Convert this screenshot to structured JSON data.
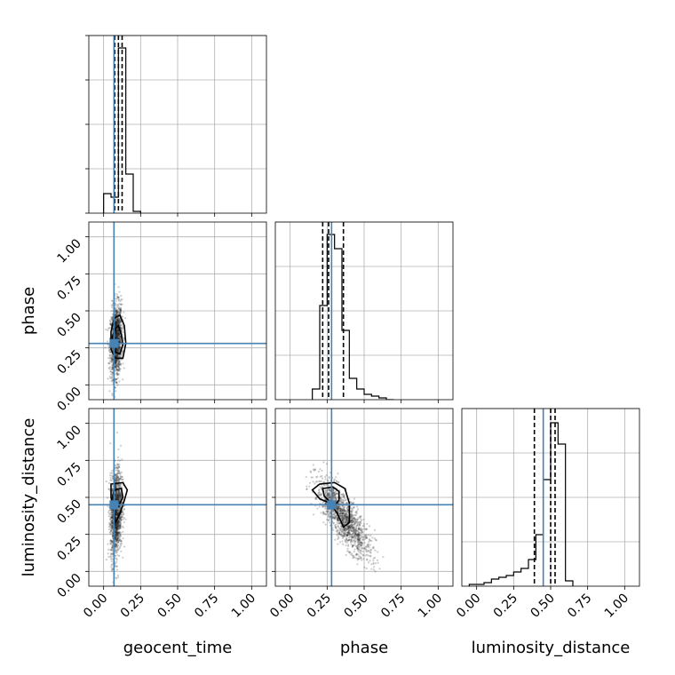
{
  "chart_data": {
    "type": "scatter",
    "variant": "corner-plot",
    "parameters": [
      "geocent_time",
      "phase",
      "luminosity_distance"
    ],
    "tick_values": [
      0.0,
      0.25,
      0.5,
      0.75,
      1.0
    ],
    "tick_labels": [
      "0.00",
      "0.25",
      "0.50",
      "0.75",
      "1.00"
    ],
    "axis_range": [
      -0.1,
      1.1
    ],
    "truths": {
      "geocent_time": 0.07,
      "phase": 0.28,
      "luminosity_distance": 0.45
    },
    "truth_color": "#4682b4",
    "grid": true,
    "histograms": {
      "geocent_time": {
        "bin_edges": [
          0.0,
          0.05,
          0.1,
          0.15,
          0.2,
          0.25
        ],
        "values": [
          0.11,
          0.09,
          0.93,
          0.22,
          0.01
        ],
        "quantiles": [
          0.075,
          0.1,
          0.125
        ]
      },
      "phase": {
        "bin_edges": [
          0.15,
          0.2,
          0.25,
          0.3,
          0.35,
          0.4,
          0.45,
          0.5,
          0.55,
          0.6,
          0.65,
          0.7
        ],
        "values": [
          0.06,
          0.53,
          0.93,
          0.85,
          0.39,
          0.12,
          0.06,
          0.03,
          0.02,
          0.01,
          0.0
        ],
        "quantiles": [
          0.22,
          0.26,
          0.36
        ]
      },
      "luminosity_distance": {
        "bin_edges": [
          -0.05,
          0.0,
          0.05,
          0.1,
          0.15,
          0.2,
          0.25,
          0.3,
          0.35,
          0.4,
          0.45,
          0.5,
          0.55,
          0.6,
          0.65
        ],
        "values": [
          0.01,
          0.01,
          0.02,
          0.04,
          0.05,
          0.06,
          0.08,
          0.1,
          0.15,
          0.29,
          0.6,
          0.92,
          0.8,
          0.03
        ],
        "quantiles": [
          0.39,
          0.5,
          0.53
        ]
      }
    },
    "pairs": [
      {
        "x": "geocent_time",
        "y": "phase",
        "mean": [
          0.085,
          0.3
        ],
        "sd": [
          0.028,
          0.12
        ],
        "corr": 0.15,
        "n": 1400,
        "contours": [
          [
            [
              0.08,
              0.38
            ],
            [
              0.1,
              0.4
            ],
            [
              0.12,
              0.34
            ],
            [
              0.13,
              0.27
            ],
            [
              0.11,
              0.21
            ],
            [
              0.08,
              0.22
            ],
            [
              0.06,
              0.27
            ],
            [
              0.06,
              0.33
            ]
          ],
          [
            [
              0.07,
              0.45
            ],
            [
              0.11,
              0.47
            ],
            [
              0.14,
              0.4
            ],
            [
              0.15,
              0.28
            ],
            [
              0.13,
              0.18
            ],
            [
              0.08,
              0.18
            ],
            [
              0.05,
              0.24
            ],
            [
              0.05,
              0.36
            ]
          ]
        ]
      },
      {
        "x": "geocent_time",
        "y": "luminosity_distance",
        "mean": [
          0.085,
          0.4
        ],
        "sd": [
          0.028,
          0.15
        ],
        "corr": 0.2,
        "n": 1400,
        "contours": [
          [
            [
              0.07,
              0.55
            ],
            [
              0.12,
              0.56
            ],
            [
              0.13,
              0.5
            ],
            [
              0.1,
              0.44
            ],
            [
              0.07,
              0.45
            ],
            [
              0.06,
              0.5
            ]
          ],
          [
            [
              0.05,
              0.59
            ],
            [
              0.13,
              0.6
            ],
            [
              0.16,
              0.55
            ],
            [
              0.14,
              0.48
            ],
            [
              0.11,
              0.39
            ],
            [
              0.08,
              0.33
            ],
            [
              0.07,
              0.4
            ],
            [
              0.05,
              0.5
            ]
          ]
        ]
      },
      {
        "x": "phase",
        "y": "luminosity_distance",
        "mean": [
          0.36,
          0.36
        ],
        "sd": [
          0.1,
          0.13
        ],
        "corr": -0.8,
        "n": 1400,
        "contours": [
          [
            [
              0.22,
              0.56
            ],
            [
              0.29,
              0.57
            ],
            [
              0.33,
              0.54
            ],
            [
              0.33,
              0.48
            ],
            [
              0.3,
              0.45
            ],
            [
              0.26,
              0.48
            ],
            [
              0.23,
              0.51
            ]
          ],
          [
            [
              0.15,
              0.55
            ],
            [
              0.2,
              0.59
            ],
            [
              0.3,
              0.6
            ],
            [
              0.37,
              0.56
            ],
            [
              0.4,
              0.46
            ],
            [
              0.4,
              0.33
            ],
            [
              0.36,
              0.3
            ],
            [
              0.32,
              0.39
            ],
            [
              0.27,
              0.46
            ],
            [
              0.2,
              0.49
            ]
          ]
        ]
      }
    ],
    "xlabels": [
      "geocent_time",
      "phase",
      "luminosity_distance"
    ],
    "ylabels": [
      "",
      "phase",
      "luminosity_distance"
    ]
  }
}
